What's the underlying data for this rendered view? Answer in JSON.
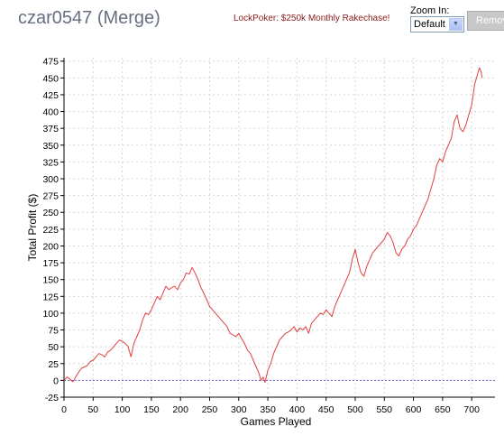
{
  "header": {
    "title": "czar0547 (Merge)",
    "promo": "LockPoker: $250k Monthly Rakechase!"
  },
  "zoom": {
    "label": "Zoom In:",
    "selected": "Default"
  },
  "remove_button": {
    "label": "Remove"
  },
  "chart_data": {
    "type": "line",
    "xlabel": "Games Played",
    "ylabel": "Total Profit ($)",
    "xlim": [
      0,
      740
    ],
    "ylim": [
      -25,
      480
    ],
    "xticks": [
      0,
      50,
      100,
      150,
      200,
      250,
      300,
      350,
      400,
      450,
      500,
      550,
      600,
      650,
      700
    ],
    "yticks": [
      -25,
      0,
      25,
      50,
      75,
      100,
      125,
      150,
      175,
      200,
      225,
      250,
      275,
      300,
      325,
      350,
      375,
      400,
      425,
      450,
      475
    ],
    "grid": true,
    "zero_line": true,
    "colors": {
      "line": "#e04040",
      "grid": "#d6d6d6",
      "zero": "#6d6dcc"
    },
    "series": [
      {
        "points": [
          [
            0,
            0
          ],
          [
            5,
            5
          ],
          [
            10,
            2
          ],
          [
            15,
            -2
          ],
          [
            20,
            5
          ],
          [
            25,
            12
          ],
          [
            30,
            18
          ],
          [
            35,
            20
          ],
          [
            40,
            22
          ],
          [
            45,
            28
          ],
          [
            50,
            30
          ],
          [
            55,
            35
          ],
          [
            60,
            40
          ],
          [
            65,
            38
          ],
          [
            70,
            35
          ],
          [
            75,
            42
          ],
          [
            80,
            45
          ],
          [
            85,
            50
          ],
          [
            90,
            55
          ],
          [
            95,
            60
          ],
          [
            100,
            58
          ],
          [
            105,
            55
          ],
          [
            110,
            50
          ],
          [
            115,
            35
          ],
          [
            120,
            55
          ],
          [
            125,
            65
          ],
          [
            130,
            75
          ],
          [
            135,
            90
          ],
          [
            140,
            100
          ],
          [
            145,
            98
          ],
          [
            150,
            105
          ],
          [
            155,
            115
          ],
          [
            160,
            125
          ],
          [
            165,
            120
          ],
          [
            170,
            130
          ],
          [
            175,
            140
          ],
          [
            180,
            135
          ],
          [
            185,
            138
          ],
          [
            190,
            140
          ],
          [
            195,
            135
          ],
          [
            200,
            145
          ],
          [
            205,
            150
          ],
          [
            210,
            160
          ],
          [
            215,
            158
          ],
          [
            220,
            168
          ],
          [
            225,
            160
          ],
          [
            230,
            150
          ],
          [
            235,
            138
          ],
          [
            240,
            130
          ],
          [
            245,
            120
          ],
          [
            250,
            110
          ],
          [
            255,
            105
          ],
          [
            260,
            100
          ],
          [
            265,
            95
          ],
          [
            270,
            90
          ],
          [
            275,
            85
          ],
          [
            280,
            80
          ],
          [
            285,
            70
          ],
          [
            290,
            68
          ],
          [
            295,
            65
          ],
          [
            300,
            70
          ],
          [
            305,
            62
          ],
          [
            310,
            55
          ],
          [
            315,
            45
          ],
          [
            320,
            40
          ],
          [
            325,
            30
          ],
          [
            330,
            20
          ],
          [
            335,
            10
          ],
          [
            338,
            0
          ],
          [
            342,
            5
          ],
          [
            345,
            -3
          ],
          [
            350,
            15
          ],
          [
            355,
            25
          ],
          [
            360,
            40
          ],
          [
            365,
            50
          ],
          [
            370,
            60
          ],
          [
            375,
            65
          ],
          [
            380,
            70
          ],
          [
            385,
            72
          ],
          [
            390,
            75
          ],
          [
            395,
            80
          ],
          [
            400,
            72
          ],
          [
            405,
            78
          ],
          [
            410,
            75
          ],
          [
            415,
            80
          ],
          [
            420,
            70
          ],
          [
            425,
            85
          ],
          [
            430,
            90
          ],
          [
            435,
            95
          ],
          [
            440,
            100
          ],
          [
            445,
            98
          ],
          [
            450,
            105
          ],
          [
            455,
            100
          ],
          [
            460,
            95
          ],
          [
            465,
            110
          ],
          [
            470,
            120
          ],
          [
            475,
            130
          ],
          [
            480,
            140
          ],
          [
            485,
            150
          ],
          [
            490,
            160
          ],
          [
            495,
            180
          ],
          [
            500,
            195
          ],
          [
            505,
            175
          ],
          [
            510,
            160
          ],
          [
            515,
            155
          ],
          [
            520,
            170
          ],
          [
            525,
            180
          ],
          [
            530,
            190
          ],
          [
            535,
            195
          ],
          [
            540,
            200
          ],
          [
            545,
            205
          ],
          [
            550,
            210
          ],
          [
            555,
            220
          ],
          [
            560,
            215
          ],
          [
            565,
            205
          ],
          [
            570,
            190
          ],
          [
            575,
            185
          ],
          [
            580,
            195
          ],
          [
            585,
            200
          ],
          [
            590,
            210
          ],
          [
            595,
            215
          ],
          [
            600,
            225
          ],
          [
            605,
            230
          ],
          [
            610,
            240
          ],
          [
            615,
            250
          ],
          [
            620,
            260
          ],
          [
            625,
            270
          ],
          [
            630,
            285
          ],
          [
            635,
            300
          ],
          [
            640,
            320
          ],
          [
            645,
            330
          ],
          [
            650,
            325
          ],
          [
            655,
            340
          ],
          [
            660,
            350
          ],
          [
            665,
            360
          ],
          [
            670,
            385
          ],
          [
            675,
            395
          ],
          [
            680,
            375
          ],
          [
            685,
            370
          ],
          [
            690,
            380
          ],
          [
            695,
            395
          ],
          [
            700,
            410
          ],
          [
            705,
            440
          ],
          [
            710,
            455
          ],
          [
            713,
            465
          ],
          [
            716,
            460
          ],
          [
            718,
            450
          ]
        ]
      }
    ]
  }
}
